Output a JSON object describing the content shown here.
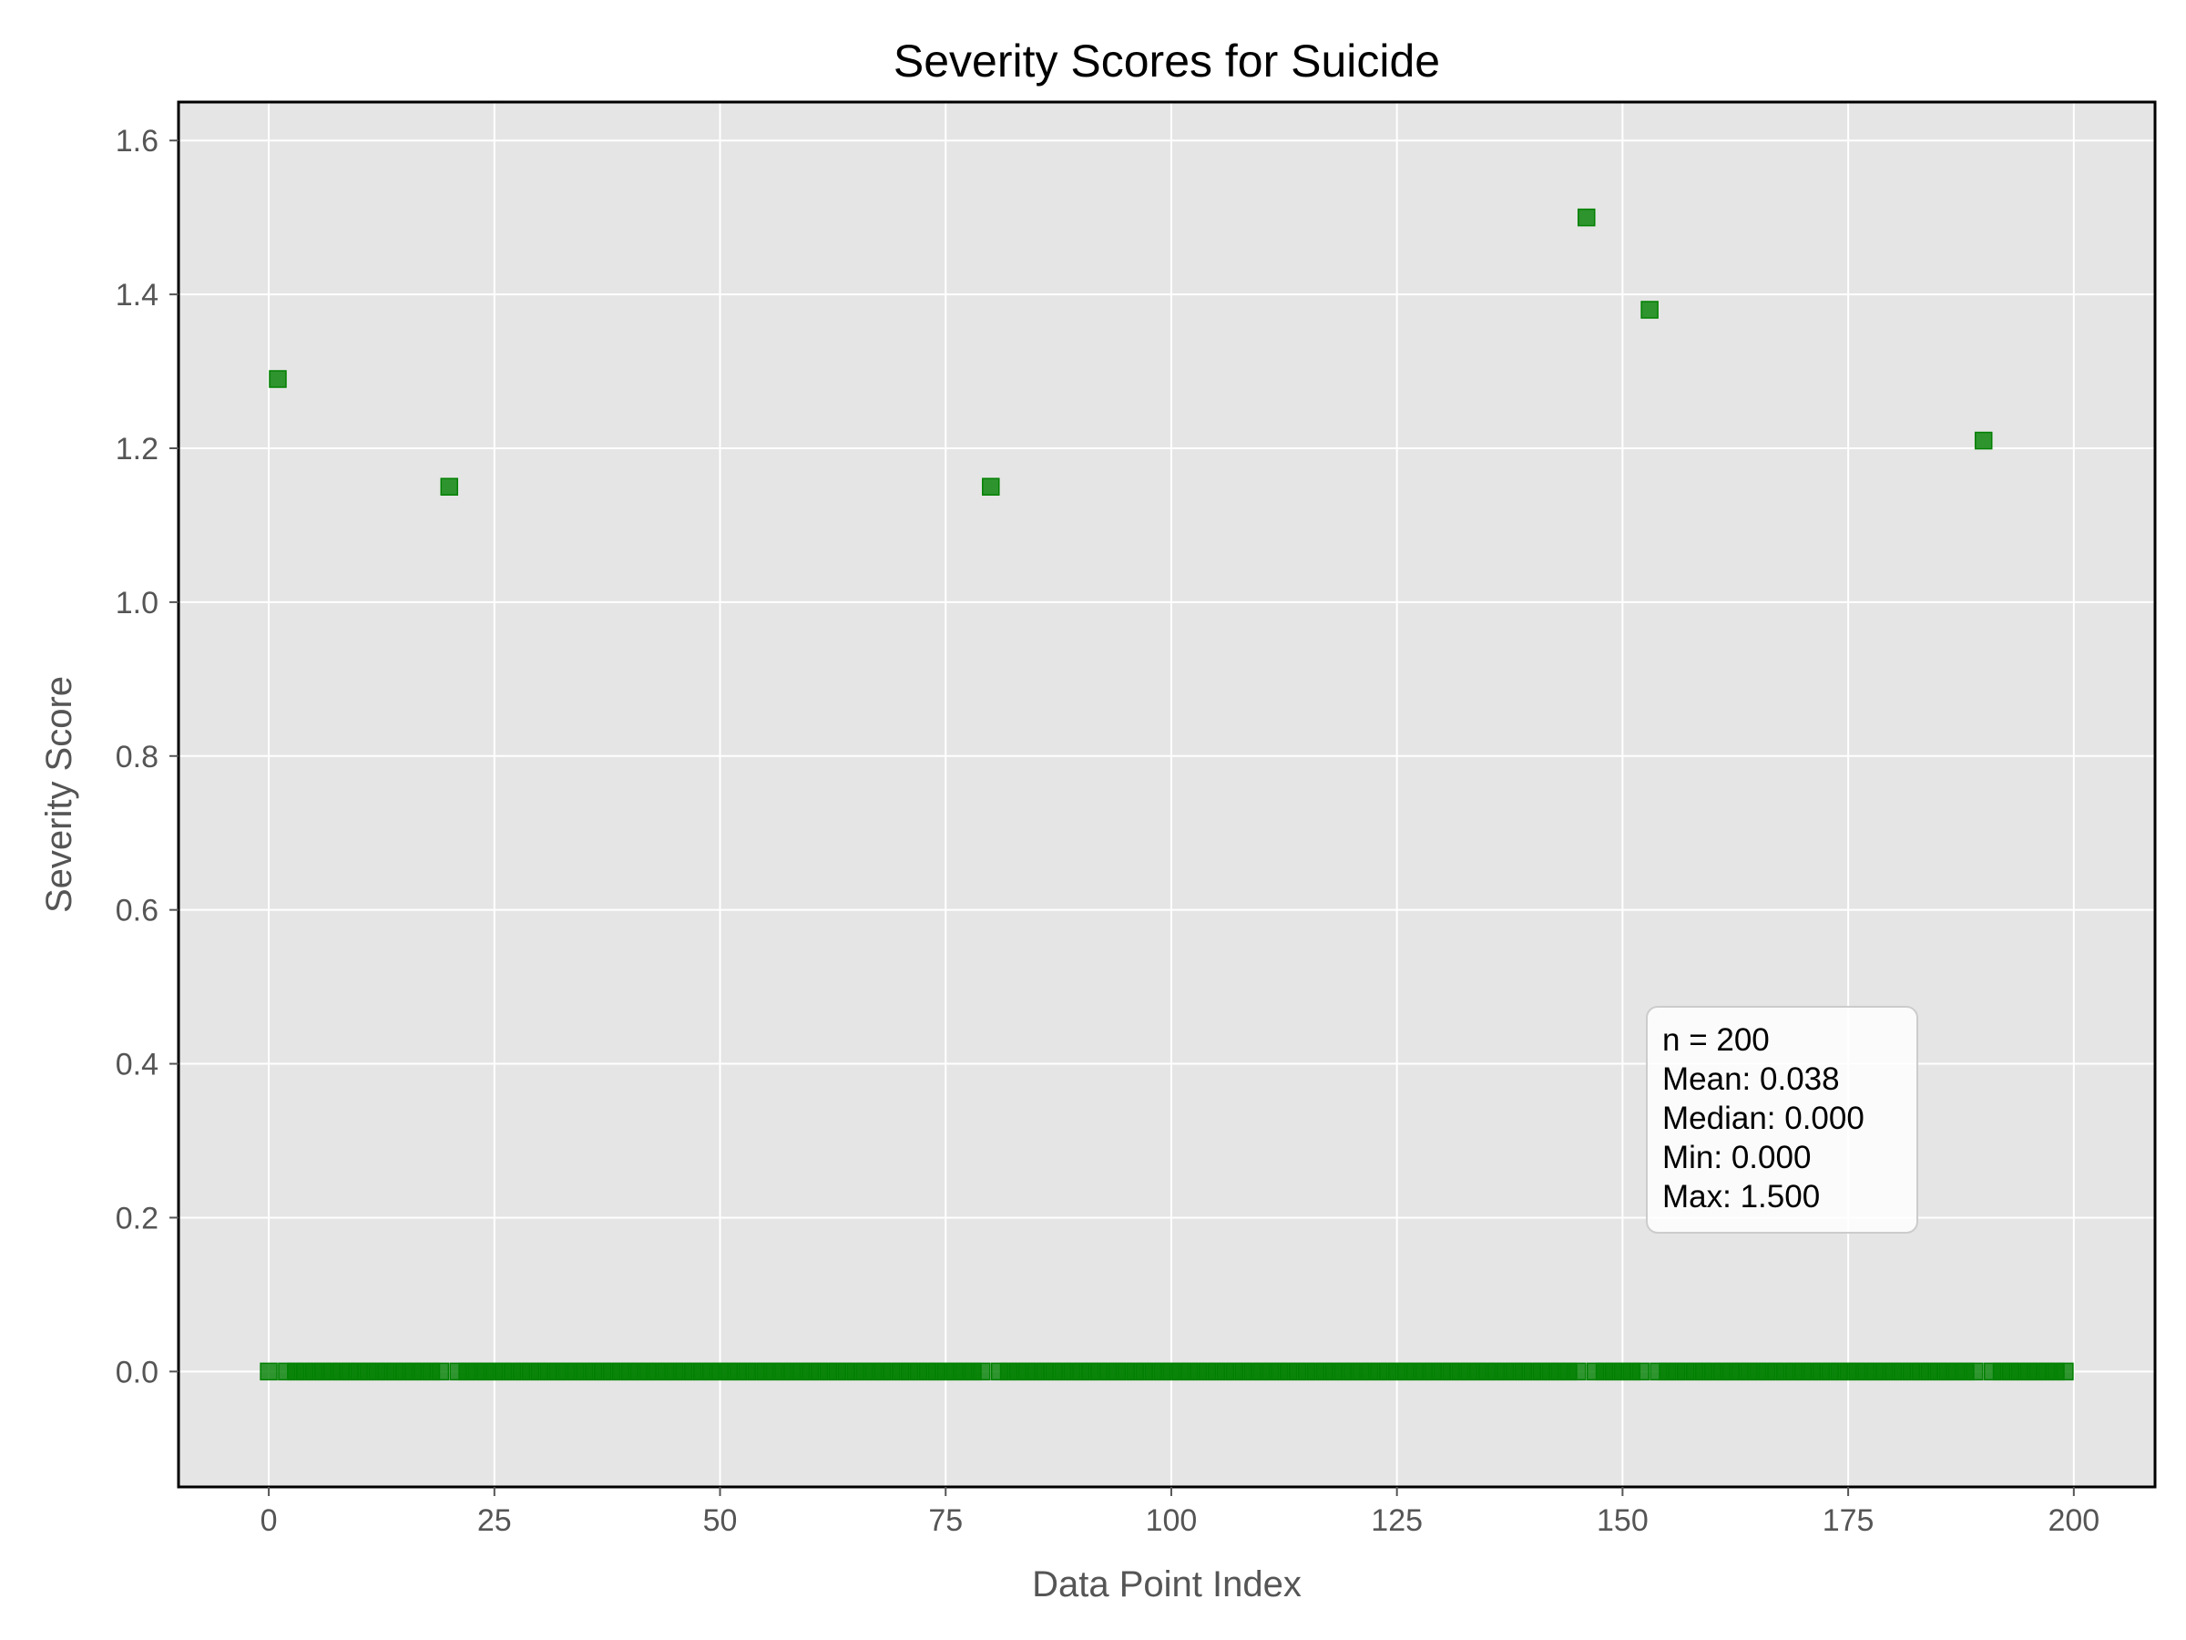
{
  "chart_data": {
    "type": "scatter",
    "title": "Severity Scores for Suicide",
    "xlabel": "Data Point Index",
    "ylabel": "Severity Score",
    "xlim": [
      -10,
      209
    ],
    "ylim": [
      -0.15,
      1.65
    ],
    "xticks": [
      0,
      25,
      50,
      75,
      100,
      125,
      150,
      175,
      200
    ],
    "yticks": [
      0.0,
      0.2,
      0.4,
      0.6,
      0.8,
      1.0,
      1.2,
      1.4,
      1.6
    ],
    "grid": true,
    "marker": "square",
    "colors": {
      "marker": "#008000",
      "plot_bg": "#e5e5e5",
      "grid": "#ffffff"
    },
    "n_points": 200,
    "nonzero_points": [
      {
        "x": 1,
        "y": 1.29
      },
      {
        "x": 20,
        "y": 1.15
      },
      {
        "x": 80,
        "y": 1.15
      },
      {
        "x": 146,
        "y": 1.5
      },
      {
        "x": 153,
        "y": 1.38
      },
      {
        "x": 190,
        "y": 1.21
      }
    ],
    "default_y": 0.0,
    "stats_box": {
      "lines": [
        "n = 200",
        "Mean: 0.038",
        "Median: 0.000",
        "Min: 0.000",
        "Max: 1.500"
      ],
      "placement": "lower-right"
    }
  }
}
